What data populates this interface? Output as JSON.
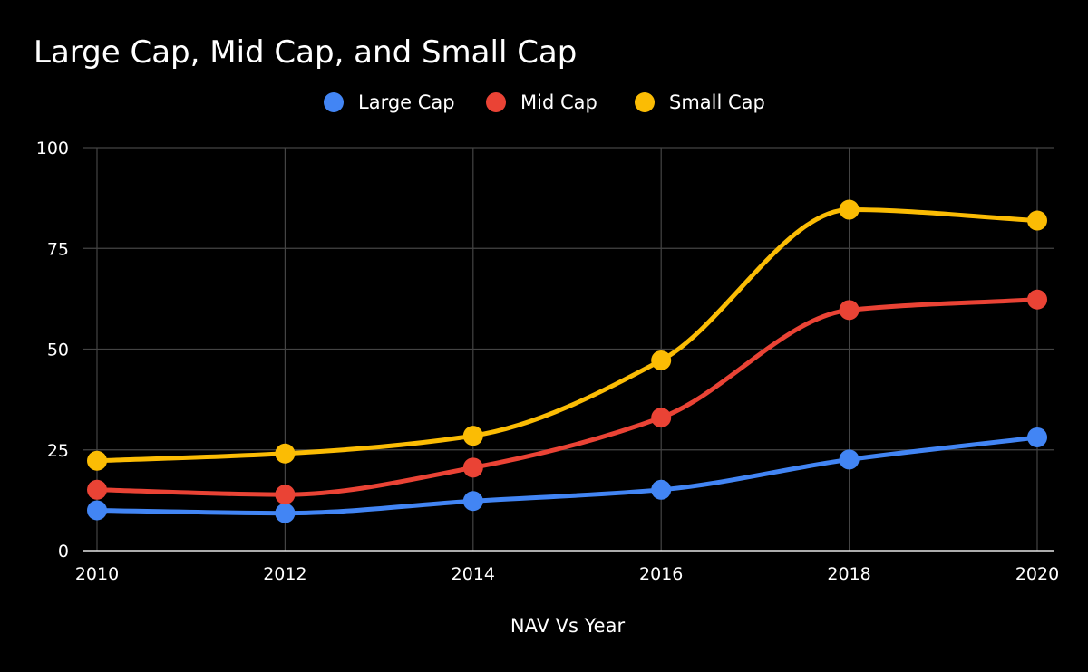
{
  "chart_data": {
    "type": "line",
    "title": "Large Cap, Mid Cap,  and Small Cap",
    "xlabel": "NAV Vs Year",
    "ylabel": "",
    "x": [
      2010,
      2012,
      2014,
      2016,
      2018,
      2020
    ],
    "x_tick_labels": [
      "2010",
      "2012",
      "2014",
      "2016",
      "2018",
      "2020"
    ],
    "ylim": [
      0,
      100
    ],
    "y_ticks": [
      0,
      25,
      50,
      75,
      100
    ],
    "y_tick_labels": [
      "0",
      "25",
      "50",
      "75",
      "100"
    ],
    "grid": true,
    "legend_position": "top-center",
    "series": [
      {
        "name": "Large Cap",
        "color": "#4285f4",
        "values": [
          10,
          9.3,
          12.3,
          15.1,
          22.6,
          28.1
        ]
      },
      {
        "name": "Mid Cap",
        "color": "#ea4335",
        "values": [
          15.1,
          13.9,
          20.6,
          33,
          59.7,
          62.3
        ]
      },
      {
        "name": "Small Cap",
        "color": "#fbbc04",
        "values": [
          22.3,
          24.1,
          28.5,
          47.2,
          84.6,
          81.9
        ]
      }
    ]
  }
}
